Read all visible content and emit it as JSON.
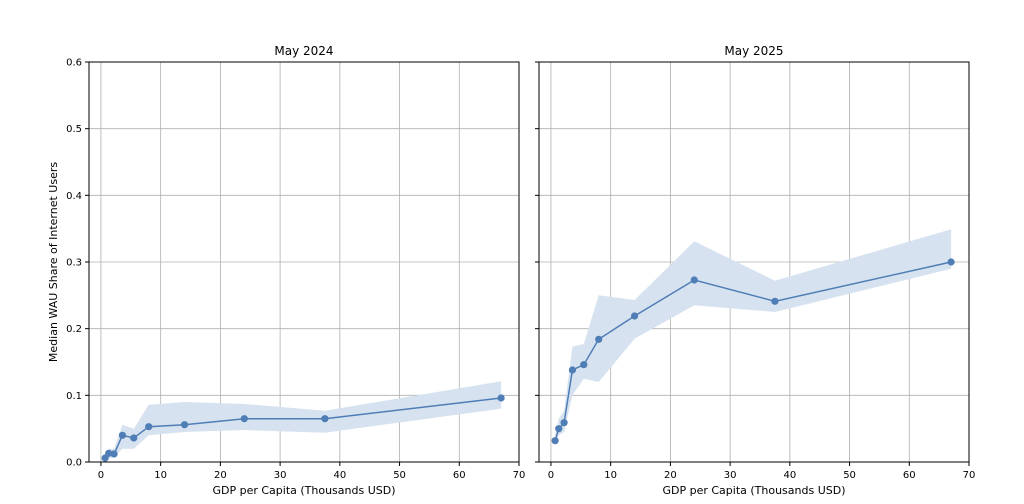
{
  "chart_data": [
    {
      "type": "line",
      "title": "May 2024",
      "xlabel": "GDP per Capita (Thousands USD)",
      "ylabel": "Median WAU Share of Internet Users",
      "xlim": [
        -2,
        70
      ],
      "ylim": [
        0,
        0.6
      ],
      "xticks": [
        0,
        10,
        20,
        30,
        40,
        50,
        60,
        70
      ],
      "yticks": [
        0.0,
        0.1,
        0.2,
        0.3,
        0.4,
        0.5,
        0.6
      ],
      "grid": true,
      "series": [
        {
          "x": [
            0.7,
            1.3,
            2.2,
            3.6,
            5.5,
            8,
            14,
            24,
            37.5,
            67
          ],
          "y": [
            0.006,
            0.013,
            0.012,
            0.04,
            0.036,
            0.053,
            0.056,
            0.065,
            0.065,
            0.096
          ],
          "lower": [
            0.002,
            0.005,
            0.007,
            0.02,
            0.02,
            0.04,
            0.045,
            0.048,
            0.044,
            0.08
          ],
          "upper": [
            0.012,
            0.02,
            0.02,
            0.056,
            0.05,
            0.086,
            0.09,
            0.087,
            0.077,
            0.121
          ]
        }
      ],
      "colors": {
        "line": "#4f7db5",
        "band": "#d6e2ef"
      }
    },
    {
      "type": "line",
      "title": "May 2025",
      "xlabel": "GDP per Capita (Thousands USD)",
      "ylabel": "",
      "xlim": [
        -2,
        70
      ],
      "ylim": [
        0,
        0.6
      ],
      "xticks": [
        0,
        10,
        20,
        30,
        40,
        50,
        60,
        70
      ],
      "yticks": [
        0.0,
        0.1,
        0.2,
        0.3,
        0.4,
        0.5,
        0.6
      ],
      "grid": true,
      "series": [
        {
          "x": [
            0.7,
            1.3,
            2.2,
            3.6,
            5.5,
            8,
            14,
            24,
            37.5,
            67
          ],
          "y": [
            0.032,
            0.05,
            0.059,
            0.138,
            0.146,
            0.184,
            0.219,
            0.273,
            0.241,
            0.3
          ],
          "lower": [
            0.025,
            0.04,
            0.045,
            0.1,
            0.125,
            0.12,
            0.185,
            0.235,
            0.225,
            0.29
          ],
          "upper": [
            0.04,
            0.065,
            0.077,
            0.173,
            0.177,
            0.25,
            0.243,
            0.331,
            0.272,
            0.349
          ]
        }
      ],
      "colors": {
        "line": "#4f7db5",
        "band": "#d6e2ef"
      }
    }
  ]
}
